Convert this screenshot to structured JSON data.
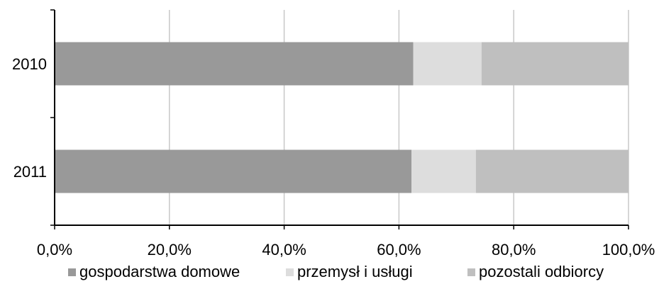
{
  "chart_data": {
    "type": "bar",
    "orientation": "horizontal",
    "stacked": "100%",
    "categories": [
      "2010",
      "2011"
    ],
    "series": [
      {
        "name": "gospodarstwa domowe",
        "color": "#999999",
        "values": [
          62.5,
          62.2
        ]
      },
      {
        "name": "przemysł i usługi",
        "color": "#dddddd",
        "values": [
          11.9,
          11.2
        ]
      },
      {
        "name": "pozostali odbiorcy",
        "color": "#bfbfbf",
        "values": [
          25.6,
          26.6
        ]
      }
    ],
    "xlim": [
      0,
      100
    ],
    "xticks": [
      "0,0%",
      "20,0%",
      "40,0%",
      "60,0%",
      "80,0%",
      "100,0%"
    ],
    "title": "",
    "xlabel": "",
    "ylabel": "",
    "grid": "vertical",
    "legend_position": "bottom"
  }
}
